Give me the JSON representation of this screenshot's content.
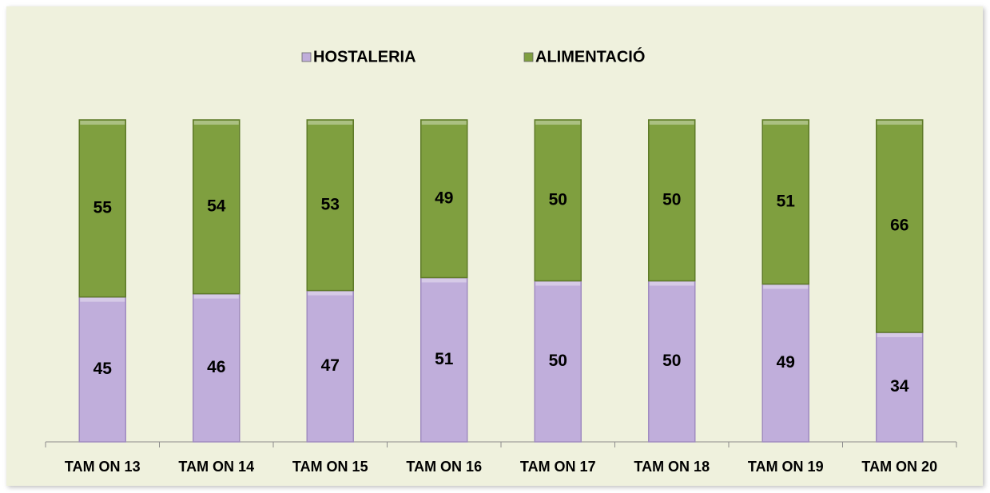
{
  "chart_data": {
    "type": "stacked-bar",
    "categories": [
      "TAM ON 13",
      "TAM ON 14",
      "TAM ON 15",
      "TAM ON 16",
      "TAM ON 17",
      "TAM ON 18",
      "TAM ON 19",
      "TAM ON 20"
    ],
    "series": [
      {
        "name": "HOSTALERIA",
        "color": "#c0aedb",
        "values": [
          45,
          46,
          47,
          51,
          50,
          50,
          49,
          34
        ]
      },
      {
        "name": "ALIMENTACIÓ",
        "color": "#7f9f3f",
        "values": [
          55,
          54,
          53,
          49,
          50,
          50,
          51,
          66
        ]
      }
    ],
    "legend": "top"
  }
}
